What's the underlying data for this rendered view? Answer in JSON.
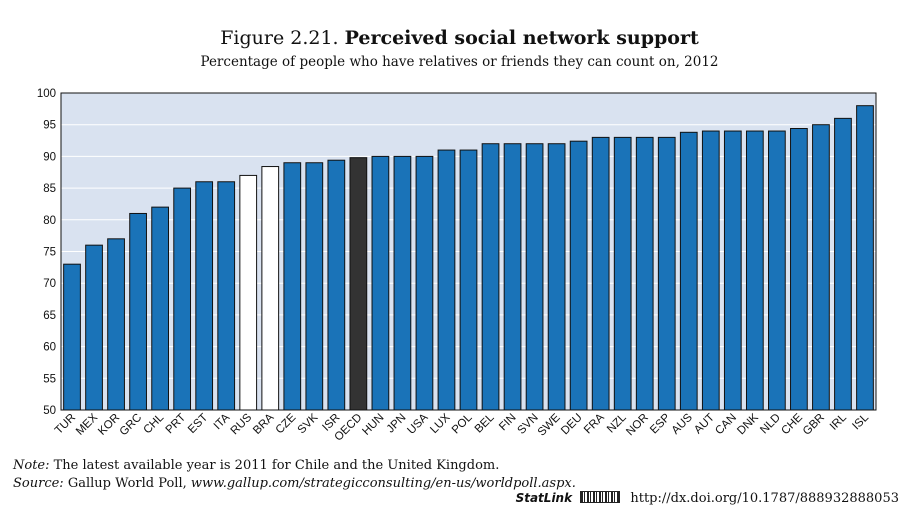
{
  "figure": {
    "number": "Figure 2.21.",
    "title": "Perceived social network support",
    "subtitle": "Percentage of people who have relatives or friends they can count on, 2012"
  },
  "chart_data": {
    "type": "bar",
    "categories": [
      "TUR",
      "MEX",
      "KOR",
      "GRC",
      "CHL",
      "PRT",
      "EST",
      "ITA",
      "RUS",
      "BRA",
      "CZE",
      "SVK",
      "ISR",
      "OECD",
      "HUN",
      "JPN",
      "USA",
      "LUX",
      "POL",
      "BEL",
      "FIN",
      "SVN",
      "SWE",
      "DEU",
      "FRA",
      "NZL",
      "NOR",
      "ESP",
      "AUS",
      "AUT",
      "CAN",
      "DNK",
      "NLD",
      "CHE",
      "GBR",
      "IRL",
      "ISL"
    ],
    "values": [
      73,
      76,
      77,
      81,
      82,
      85,
      86,
      86,
      87,
      88.4,
      89,
      89,
      89.4,
      89.8,
      90,
      90,
      90,
      91,
      91,
      92,
      92,
      92,
      92,
      92.4,
      93,
      93,
      93,
      93,
      93.8,
      94,
      94,
      94,
      94,
      94.4,
      95,
      96,
      98
    ],
    "bar_fill": [
      "blue",
      "blue",
      "blue",
      "blue",
      "blue",
      "blue",
      "blue",
      "blue",
      "white",
      "white",
      "blue",
      "blue",
      "blue",
      "dark",
      "blue",
      "blue",
      "blue",
      "blue",
      "blue",
      "blue",
      "blue",
      "blue",
      "blue",
      "blue",
      "blue",
      "blue",
      "blue",
      "blue",
      "blue",
      "blue",
      "blue",
      "blue",
      "blue",
      "blue",
      "blue",
      "blue",
      "blue"
    ],
    "ylim": [
      50,
      100
    ],
    "yticks": [
      50,
      55,
      60,
      65,
      70,
      75,
      80,
      85,
      90,
      95,
      100
    ],
    "grid": true,
    "colors": {
      "blue": "#1a73b8",
      "dark": "#333333",
      "white": "#ffffff",
      "plot_bg": "#d9e2f0",
      "outline": "#111111"
    }
  },
  "notes": {
    "note_label": "Note:",
    "note_text": "The latest available year is 2011 for Chile and the United Kingdom.",
    "source_label": "Source:",
    "source_text": "Gallup World Poll,",
    "source_url": "www.gallup.com/strategicconsulting/en-us/worldpoll.aspx."
  },
  "statlink": {
    "label": "StatLink",
    "url": "http://dx.doi.org/10.1787/888932888053"
  }
}
